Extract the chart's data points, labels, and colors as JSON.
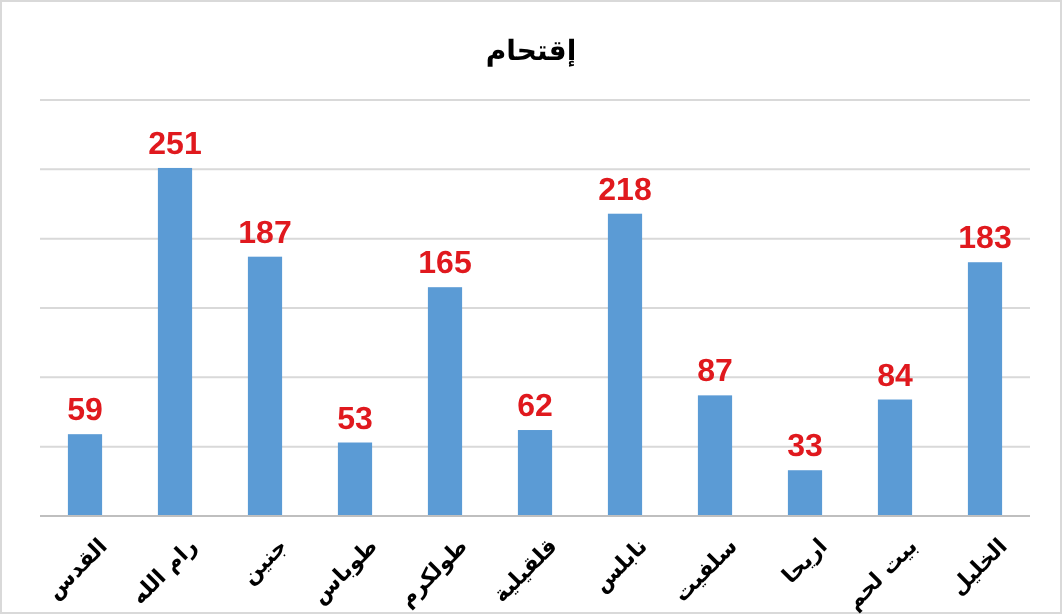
{
  "chart_data": {
    "type": "bar",
    "title": "إقتحام",
    "categories": [
      "القدس",
      "رام الله",
      "جنين",
      "طوباس",
      "طولكرم",
      "قلقيلية",
      "نابلس",
      "سلفيت",
      "اريحا",
      "بيت لحم",
      "الخليل"
    ],
    "values": [
      59,
      251,
      187,
      53,
      165,
      62,
      218,
      87,
      33,
      84,
      183
    ],
    "color": "#5b9bd5",
    "data_labels": true,
    "grid": "y",
    "tick_labels": "x",
    "ylim": [
      0,
      300
    ],
    "yticks": [
      {
        "value": 0,
        "label": null
      },
      {
        "value": 50,
        "label": null
      },
      {
        "value": 100,
        "label": null
      },
      {
        "value": 150,
        "label": null
      },
      {
        "value": 200,
        "label": null
      },
      {
        "value": 250,
        "label": null
      },
      {
        "value": 300,
        "label": null
      }
    ]
  }
}
